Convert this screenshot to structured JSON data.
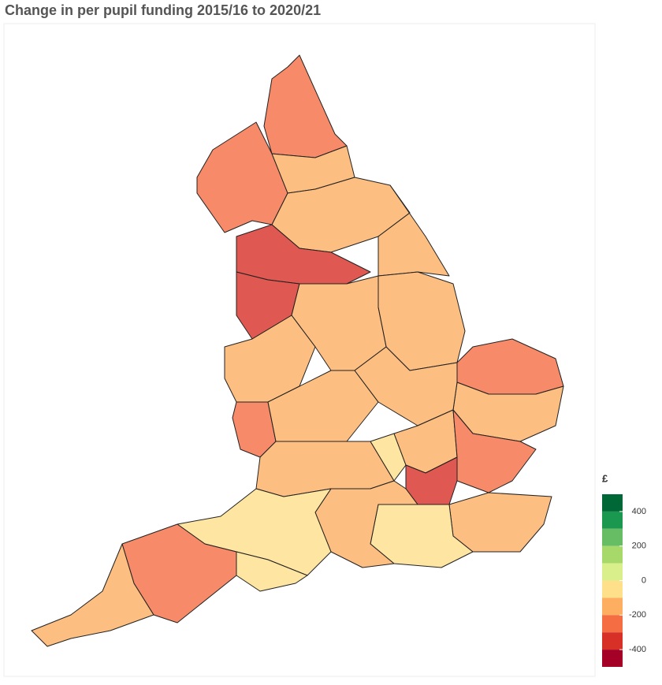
{
  "chart_data": {
    "type": "choropleth",
    "title": "Change in per pupil funding 2015/16 to 2020/21",
    "values": [
      -260,
      -260,
      -190,
      -150,
      -150,
      -320,
      -330,
      -150,
      -150,
      -260,
      -150,
      -190,
      -290,
      -200,
      -170,
      -150,
      -50,
      -180,
      -260,
      -350,
      -150,
      -100,
      -160,
      -70,
      -50,
      -260,
      -190
    ],
    "legend": {
      "title": "£",
      "lim": [
        -500,
        500
      ],
      "ticks": [
        400,
        200,
        0,
        -200,
        -400
      ],
      "bins": [
        {
          "from": 400,
          "to": 500,
          "color": "#006837"
        },
        {
          "from": 300,
          "to": 400,
          "color": "#1a9850"
        },
        {
          "from": 200,
          "to": 300,
          "color": "#66bd63"
        },
        {
          "from": 100,
          "to": 200,
          "color": "#a6d96a"
        },
        {
          "from": 0,
          "to": 100,
          "color": "#d9ef8b"
        },
        {
          "from": -100,
          "to": 0,
          "color": "#fee08b"
        },
        {
          "from": -200,
          "to": -100,
          "color": "#fdae61"
        },
        {
          "from": -300,
          "to": -200,
          "color": "#f46d43"
        },
        {
          "from": -400,
          "to": -300,
          "color": "#d73027"
        },
        {
          "from": -500,
          "to": -400,
          "color": "#a50026"
        }
      ]
    }
  }
}
